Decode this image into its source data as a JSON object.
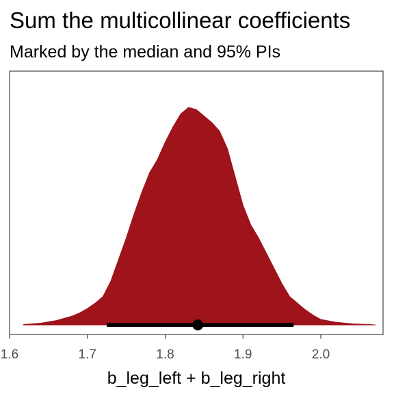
{
  "chart_data": {
    "type": "area",
    "title": "Sum the multicollinear coefficients",
    "subtitle": "Marked by the median and 95% PIs",
    "xlabel": "b_leg_left + b_leg_right",
    "ylabel": "",
    "xlim": [
      1.6,
      2.08
    ],
    "x_ticks": [
      1.6,
      1.7,
      1.8,
      1.9,
      2.0
    ],
    "x_tick_labels": [
      "1.6",
      "1.7",
      "1.8",
      "1.9",
      "2.0"
    ],
    "y_ticks": [],
    "grid": false,
    "legend": "none",
    "series": [
      {
        "x": [
          1.618,
          1.64,
          1.66,
          1.68,
          1.69,
          1.7,
          1.71,
          1.72,
          1.73,
          1.74,
          1.75,
          1.76,
          1.77,
          1.78,
          1.79,
          1.8,
          1.81,
          1.82,
          1.83,
          1.84,
          1.85,
          1.86,
          1.87,
          1.88,
          1.89,
          1.9,
          1.91,
          1.92,
          1.93,
          1.94,
          1.95,
          1.96,
          1.97,
          1.98,
          1.99,
          2.0,
          2.02,
          2.04,
          2.06,
          2.07
        ],
        "density": [
          0.002,
          0.008,
          0.02,
          0.04,
          0.055,
          0.075,
          0.1,
          0.13,
          0.2,
          0.3,
          0.4,
          0.51,
          0.61,
          0.7,
          0.76,
          0.84,
          0.91,
          0.97,
          1.0,
          0.99,
          0.96,
          0.93,
          0.89,
          0.81,
          0.68,
          0.55,
          0.46,
          0.4,
          0.33,
          0.26,
          0.19,
          0.13,
          0.1,
          0.07,
          0.045,
          0.025,
          0.012,
          0.005,
          0.002,
          0.0
        ]
      }
    ],
    "summary": {
      "median": 1.842,
      "pi_lower": 1.725,
      "pi_upper": 1.965,
      "interval_level": "95%"
    },
    "colors": {
      "fill": "#9e141a",
      "interval": "#000000",
      "panel_border": "#333333",
      "tick_text": "#4d4d4d"
    }
  }
}
